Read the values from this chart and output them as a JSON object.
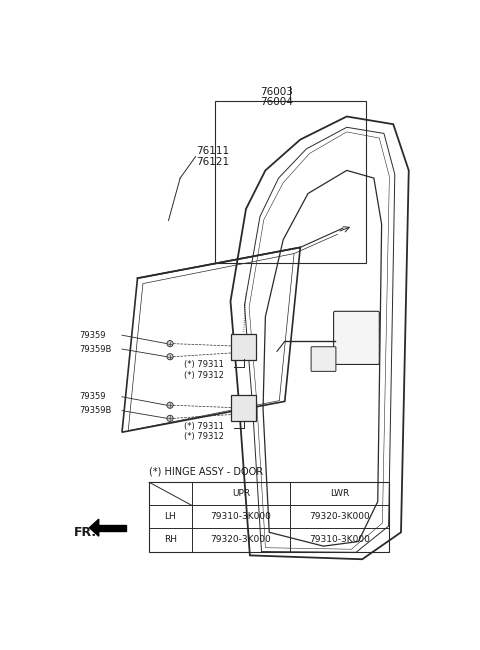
{
  "bg_color": "#ffffff",
  "line_color": "#2a2a2a",
  "text_color": "#1a1a1a",
  "fs_label": 6.0,
  "fs_table": 6.5,
  "table_title": "(*) HINGE ASSY - DOOR",
  "table_headers": [
    "",
    "UPR",
    "LWR"
  ],
  "table_rows": [
    [
      "LH",
      "79310-3K000",
      "79320-3K000"
    ],
    [
      "RH",
      "79320-3K000",
      "79310-3K000"
    ]
  ],
  "label_76003": "76003",
  "label_76004": "76004",
  "label_76111": "76111",
  "label_76121": "76121",
  "label_79359": "79359",
  "label_79359B": "79359B",
  "label_79311": "(*) 79311",
  "label_79312": "(*) 79312",
  "fr_label": "FR."
}
